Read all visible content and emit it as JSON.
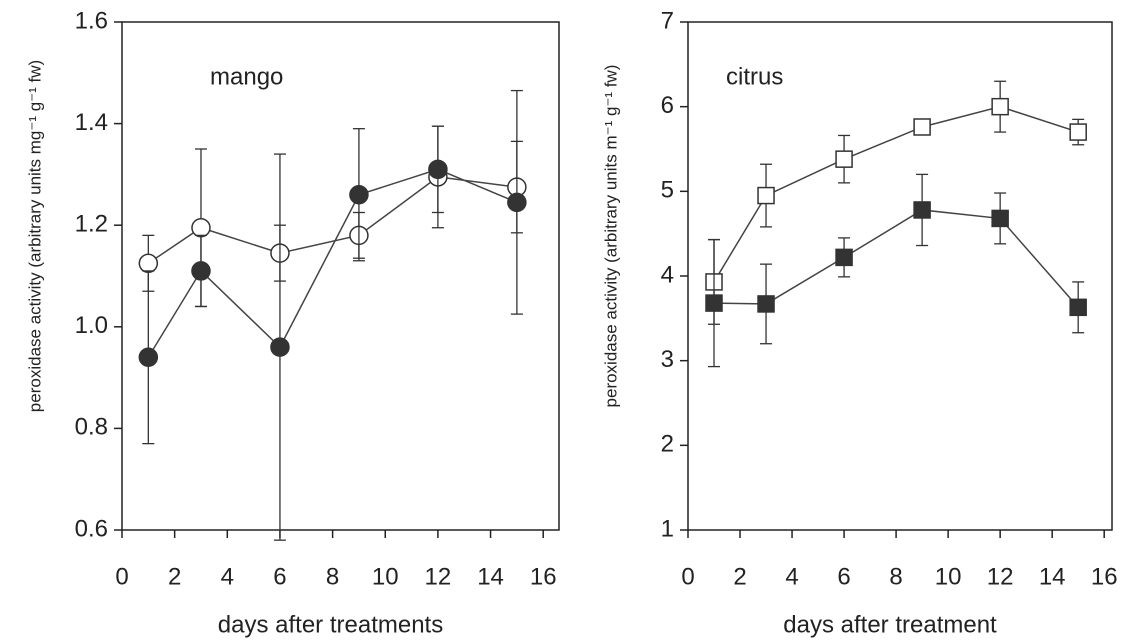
{
  "chart_data": [
    {
      "type": "line",
      "title": "mango",
      "xlabel": "days after treatments",
      "ylabel": "peroxidase activity (arbitrary units mg⁻¹ g⁻¹ fw)",
      "x": [
        1,
        3,
        6,
        9,
        12,
        15
      ],
      "series": [
        {
          "color": "#ffffff",
          "marker": "circle",
          "values": [
            1.125,
            1.195,
            1.145,
            1.18,
            1.295,
            1.275
          ],
          "errors": [
            0.055,
            0.155,
            0.055,
            0.045,
            0.1,
            0.09
          ]
        },
        {
          "color": "#333333",
          "marker": "circle",
          "values": [
            0.94,
            1.11,
            0.96,
            1.26,
            1.31,
            1.245
          ],
          "errors": [
            0.17,
            0.07,
            0.38,
            0.13,
            0.085,
            0.22
          ]
        }
      ],
      "xlim": [
        0,
        16.6
      ],
      "xticks": [
        0,
        2,
        4,
        6,
        8,
        10,
        12,
        14,
        16
      ],
      "ylim": [
        0.6,
        1.6
      ],
      "yticks": [
        0.6,
        0.8,
        {
          "value": 1,
          "label": "1.0"
        },
        1.2,
        1.4,
        1.6
      ]
    },
    {
      "type": "line",
      "title": "citrus",
      "xlabel": "days after treatment",
      "ylabel": "peroxidase activity (arbitrary units m⁻¹ g⁻¹ fw)",
      "x": [
        1,
        3,
        6,
        9,
        12,
        15
      ],
      "series": [
        {
          "color": "#ffffff",
          "marker": "square",
          "values": [
            3.93,
            4.95,
            5.38,
            5.76,
            6.0,
            5.7
          ],
          "errors": [
            0.5,
            0.37,
            0.28,
            0.05,
            0.3,
            0.15
          ]
        },
        {
          "color": "#333333",
          "marker": "square",
          "values": [
            3.68,
            3.67,
            4.22,
            4.78,
            4.68,
            3.63
          ],
          "errors": [
            0.75,
            0.47,
            0.23,
            0.42,
            0.3,
            0.3
          ]
        }
      ],
      "xlim": [
        0,
        16.3
      ],
      "xticks": [
        0,
        2,
        4,
        6,
        8,
        10,
        12,
        14,
        16
      ],
      "ylim": [
        1,
        7
      ],
      "yticks": [
        1,
        2,
        3,
        4,
        5,
        6,
        7
      ]
    }
  ]
}
